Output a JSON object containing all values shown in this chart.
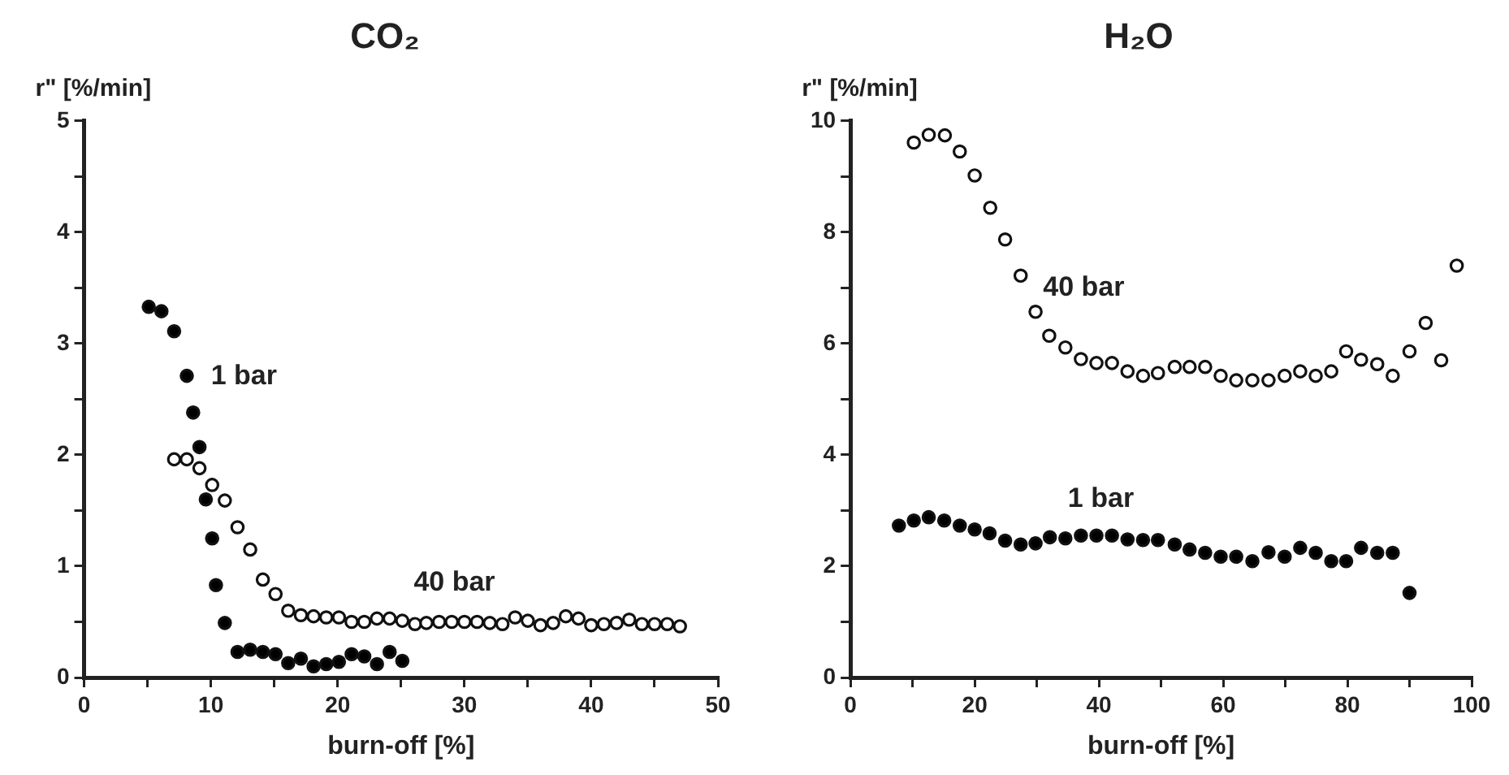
{
  "chart_data": [
    {
      "type": "scatter",
      "title": "CO₂",
      "xlabel": "burn-off [%]",
      "ylabel": "r\" [%/min]",
      "marker": "circle",
      "grid": false,
      "legend": false,
      "xlim": [
        0,
        50
      ],
      "xticks": [
        0,
        {
          "value": 5,
          "label": null
        },
        10,
        {
          "value": 15,
          "label": null
        },
        20,
        {
          "value": 25,
          "label": null
        },
        30,
        {
          "value": 35,
          "label": null
        },
        40,
        {
          "value": 45,
          "label": null
        },
        50
      ],
      "ylim": [
        0,
        5
      ],
      "yticks": [
        0,
        {
          "value": 0.5,
          "label": null
        },
        1,
        {
          "value": 1.5,
          "label": null
        },
        2,
        {
          "value": 2.5,
          "label": null
        },
        3,
        {
          "value": 3.5,
          "label": null
        },
        4,
        {
          "value": 4.5,
          "label": null
        },
        5
      ],
      "series": [
        {
          "color": "#000000",
          "x": [
            5.1,
            6.1,
            7.1,
            8.1,
            8.6,
            9.1,
            9.6,
            10.1,
            10.4,
            11.1,
            12.1,
            13.1,
            14.1,
            15.1,
            16.1,
            17.1,
            18.1,
            19.1,
            20.1,
            21.1,
            22.1,
            23.1,
            24.1,
            25.1
          ],
          "values": [
            3.33,
            3.29,
            3.11,
            2.71,
            2.38,
            2.07,
            1.6,
            1.25,
            0.83,
            0.49,
            0.23,
            0.25,
            0.23,
            0.21,
            0.13,
            0.17,
            0.1,
            0.12,
            0.14,
            0.21,
            0.19,
            0.12,
            0.23,
            0.15
          ]
        },
        {
          "color": "#ffffff",
          "x": [
            7.1,
            8.1,
            9.1,
            10.1,
            11.1,
            12.1,
            13.1,
            14.1,
            15.1,
            16.1,
            17.1,
            18.1,
            19.1,
            20.1,
            21.1,
            22.1,
            23.1,
            24.1,
            25.1,
            26.1,
            27,
            28,
            29,
            30,
            31,
            32,
            33,
            34,
            35,
            36,
            37,
            38,
            39,
            40,
            41,
            42,
            43,
            44,
            45,
            46,
            47
          ],
          "values": [
            1.96,
            1.96,
            1.88,
            1.73,
            1.59,
            1.35,
            1.15,
            0.88,
            0.75,
            0.6,
            0.56,
            0.55,
            0.54,
            0.54,
            0.5,
            0.5,
            0.53,
            0.53,
            0.51,
            0.48,
            0.49,
            0.5,
            0.5,
            0.5,
            0.5,
            0.49,
            0.48,
            0.54,
            0.51,
            0.47,
            0.49,
            0.55,
            0.53,
            0.47,
            0.48,
            0.49,
            0.52,
            0.48,
            0.48,
            0.48,
            0.46
          ]
        }
      ],
      "annotations": [
        "1 bar",
        "40 bar"
      ]
    },
    {
      "type": "scatter",
      "title": "H₂O",
      "xlabel": "burn-off [%]",
      "ylabel": "r\" [%/min]",
      "marker": "circle",
      "grid": false,
      "legend": false,
      "xlim": [
        0,
        100
      ],
      "xticks": [
        0,
        {
          "value": 10,
          "label": null
        },
        20,
        {
          "value": 30,
          "label": null
        },
        40,
        {
          "value": 50,
          "label": null
        },
        60,
        {
          "value": 70,
          "label": null
        },
        80,
        {
          "value": 90,
          "label": null
        },
        100
      ],
      "ylim": [
        0,
        10
      ],
      "yticks": [
        0,
        {
          "value": 1,
          "label": null
        },
        2,
        {
          "value": 3,
          "label": null
        },
        4,
        {
          "value": 5,
          "label": null
        },
        6,
        {
          "value": 7,
          "label": null
        },
        8,
        {
          "value": 9,
          "label": null
        },
        10
      ],
      "series": [
        {
          "color": "#ffffff",
          "x": [
            10.2,
            12.6,
            15.2,
            17.6,
            20,
            22.5,
            24.9,
            27.4,
            29.8,
            32,
            34.6,
            37.1,
            39.6,
            42.1,
            44.6,
            47.1,
            49.5,
            52.2,
            54.6,
            57.1,
            59.6,
            62.1,
            64.7,
            67.3,
            69.9,
            72.4,
            74.9,
            77.4,
            79.8,
            82.2,
            84.8,
            87.3,
            90,
            92.6,
            95.1,
            97.6
          ],
          "values": [
            9.61,
            9.75,
            9.74,
            9.45,
            9.02,
            8.44,
            7.87,
            7.22,
            6.57,
            6.14,
            5.93,
            5.72,
            5.65,
            5.65,
            5.5,
            5.42,
            5.47,
            5.58,
            5.58,
            5.58,
            5.42,
            5.34,
            5.34,
            5.34,
            5.42,
            5.5,
            5.42,
            5.5,
            5.86,
            5.71,
            5.63,
            5.42,
            5.86,
            6.37,
            5.7,
            7.4
          ]
        },
        {
          "color": "#000000",
          "x": [
            7.8,
            10.2,
            12.6,
            15.1,
            17.6,
            20,
            22.4,
            24.9,
            27.4,
            29.8,
            32.1,
            34.6,
            37.1,
            39.6,
            42.1,
            44.6,
            47.1,
            49.5,
            52.2,
            54.6,
            57.1,
            59.6,
            62.1,
            64.7,
            67.3,
            69.9,
            72.4,
            74.9,
            77.4,
            79.8,
            82.2,
            84.8,
            87.3,
            90
          ],
          "values": [
            2.73,
            2.82,
            2.88,
            2.82,
            2.73,
            2.66,
            2.59,
            2.46,
            2.39,
            2.41,
            2.52,
            2.5,
            2.55,
            2.55,
            2.55,
            2.48,
            2.47,
            2.47,
            2.39,
            2.3,
            2.24,
            2.17,
            2.17,
            2.09,
            2.25,
            2.17,
            2.33,
            2.24,
            2.09,
            2.09,
            2.33,
            2.24,
            2.24,
            1.52
          ]
        }
      ],
      "annotations": [
        "40 bar",
        "1 bar"
      ]
    }
  ]
}
